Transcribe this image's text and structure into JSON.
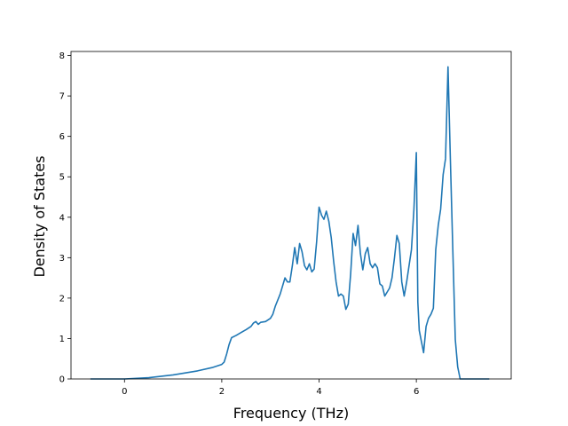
{
  "chart_data": {
    "type": "line",
    "title": "",
    "xlabel": "Frequency (THz)",
    "ylabel": "Density of States",
    "xlim": [
      -1.1,
      7.95
    ],
    "ylim": [
      0,
      8.1
    ],
    "xticks": [
      0,
      2,
      4,
      6
    ],
    "yticks": [
      0,
      1,
      2,
      3,
      4,
      5,
      6,
      7,
      8
    ],
    "grid": false,
    "legend": "none",
    "series": [
      {
        "color": "#1f77b4",
        "x": [
          -0.7,
          0.0,
          0.5,
          1.0,
          1.5,
          1.8,
          2.0,
          2.05,
          2.1,
          2.15,
          2.2,
          2.3,
          2.4,
          2.5,
          2.6,
          2.65,
          2.7,
          2.75,
          2.8,
          2.9,
          3.0,
          3.05,
          3.1,
          3.2,
          3.3,
          3.35,
          3.4,
          3.45,
          3.5,
          3.55,
          3.6,
          3.65,
          3.7,
          3.75,
          3.8,
          3.85,
          3.9,
          3.95,
          4.0,
          4.05,
          4.1,
          4.15,
          4.2,
          4.25,
          4.3,
          4.35,
          4.4,
          4.45,
          4.5,
          4.55,
          4.6,
          4.65,
          4.7,
          4.75,
          4.8,
          4.85,
          4.9,
          4.95,
          5.0,
          5.05,
          5.1,
          5.15,
          5.2,
          5.25,
          5.3,
          5.35,
          5.4,
          5.45,
          5.5,
          5.55,
          5.6,
          5.65,
          5.7,
          5.75,
          5.8,
          5.85,
          5.9,
          5.95,
          6.0,
          6.03,
          6.06,
          6.1,
          6.15,
          6.2,
          6.25,
          6.3,
          6.35,
          6.4,
          6.45,
          6.5,
          6.55,
          6.6,
          6.65,
          6.7,
          6.75,
          6.8,
          6.85,
          6.9,
          7.0,
          7.5
        ],
        "y": [
          0.0,
          0.0,
          0.03,
          0.1,
          0.2,
          0.28,
          0.36,
          0.42,
          0.62,
          0.85,
          1.02,
          1.08,
          1.15,
          1.22,
          1.3,
          1.38,
          1.42,
          1.35,
          1.4,
          1.42,
          1.5,
          1.6,
          1.8,
          2.1,
          2.5,
          2.4,
          2.4,
          2.8,
          3.25,
          2.85,
          3.35,
          3.15,
          2.8,
          2.7,
          2.85,
          2.65,
          2.72,
          3.4,
          4.25,
          4.05,
          3.95,
          4.15,
          3.9,
          3.5,
          2.9,
          2.4,
          2.05,
          2.1,
          2.05,
          1.72,
          1.85,
          2.6,
          3.6,
          3.3,
          3.8,
          3.1,
          2.7,
          3.1,
          3.25,
          2.85,
          2.75,
          2.85,
          2.75,
          2.35,
          2.3,
          2.05,
          2.15,
          2.25,
          2.5,
          3.0,
          3.55,
          3.35,
          2.4,
          2.05,
          2.4,
          2.8,
          3.2,
          4.2,
          5.6,
          1.9,
          1.2,
          0.95,
          0.65,
          1.3,
          1.5,
          1.6,
          1.75,
          3.2,
          3.8,
          4.2,
          5.05,
          5.45,
          7.72,
          5.4,
          3.2,
          0.98,
          0.3,
          0.0,
          0.0,
          0.0
        ]
      }
    ]
  }
}
